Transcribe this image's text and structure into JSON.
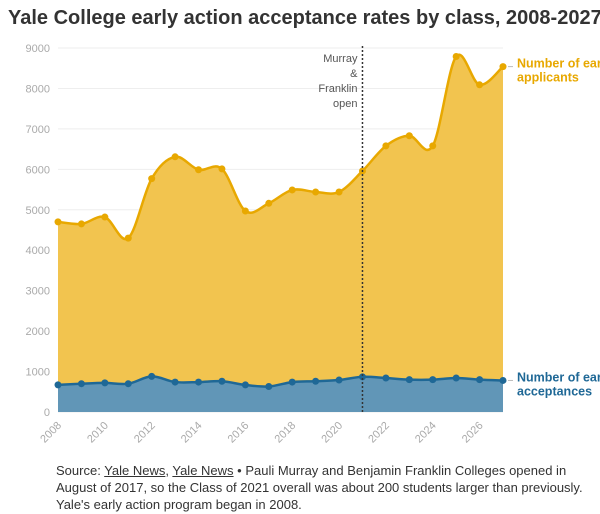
{
  "title": "Yale College early action acceptance rates by class, 2008-2027",
  "source": {
    "prefix": "Source: ",
    "link1": "Yale News",
    "sep": ", ",
    "link2": "Yale News",
    "note": " • Pauli Murray and Benjamin Franklin Colleges opened in August of 2017, so the Class of 2021 overall was about 200 students larger than previously. Yale's early action program began in 2008."
  },
  "chart_data": {
    "type": "area",
    "x": [
      2008,
      2009,
      2010,
      2011,
      2012,
      2013,
      2014,
      2015,
      2016,
      2017,
      2018,
      2019,
      2020,
      2021,
      2022,
      2023,
      2024,
      2025,
      2026,
      2027
    ],
    "series": [
      {
        "name": "Number of early applicants",
        "color": "#e8a800",
        "fill": "#f2c44f",
        "values": [
          4700,
          4650,
          4820,
          4300,
          5770,
          6310,
          5990,
          6010,
          4970,
          5160,
          5490,
          5440,
          5440,
          5960,
          6580,
          6830,
          6580,
          8790,
          8090,
          8540
        ]
      },
      {
        "name": "Number of early acceptances",
        "color": "#1f6896",
        "fill": "#6196b7",
        "values": [
          670,
          700,
          720,
          700,
          880,
          740,
          740,
          760,
          670,
          630,
          740,
          760,
          790,
          870,
          840,
          800,
          800,
          840,
          800,
          780
        ]
      }
    ],
    "xlim": [
      2008,
      2027
    ],
    "ylim": [
      0,
      9000
    ],
    "yticks": [
      0,
      1000,
      2000,
      3000,
      4000,
      5000,
      6000,
      7000,
      8000,
      9000
    ],
    "xticks": [
      2008,
      2010,
      2012,
      2014,
      2016,
      2018,
      2020,
      2022,
      2024,
      2026
    ],
    "grid": true,
    "annotation": {
      "x": 2021,
      "lines": [
        "Murray",
        "&",
        "Franklin",
        "open"
      ]
    }
  }
}
